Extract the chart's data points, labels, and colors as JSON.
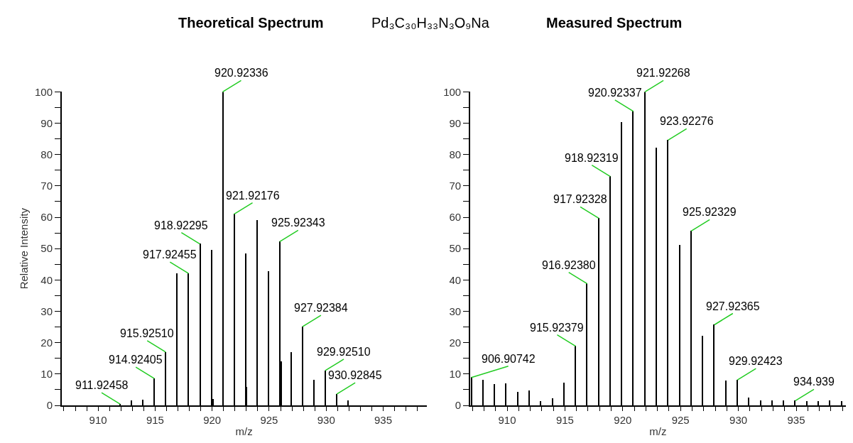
{
  "chart_data": [
    {
      "type": "bar",
      "title": "Theoretical Spectrum",
      "xlabel": "m/z",
      "ylabel": "Relative Intensity",
      "annotations": [
        "Pd₃C₃₀H₃₃N₃O₉Na",
        {
          "text": "911.92458",
          "x": 911.92458,
          "y": 0.4
        },
        {
          "text": "914.92405",
          "x": 914.92405,
          "y": 8.6
        },
        {
          "text": "915.92510",
          "x": 915.9251,
          "y": 17
        },
        {
          "text": "917.92455",
          "x": 917.92455,
          "y": 42.1
        },
        {
          "text": "918.92295",
          "x": 918.92295,
          "y": 51.5
        },
        {
          "text": "920.92336",
          "x": 920.92336,
          "y": 100
        },
        {
          "text": "921.92176",
          "x": 921.92176,
          "y": 61
        },
        {
          "text": "925.92343",
          "x": 925.92343,
          "y": 52.2
        },
        {
          "text": "927.92384",
          "x": 927.92384,
          "y": 25.1
        },
        {
          "text": "929.92510",
          "x": 929.9251,
          "y": 11.1
        },
        {
          "text": "930.92845",
          "x": 930.92845,
          "y": 3.6
        }
      ],
      "x": [
        911.92,
        912.92,
        913.92,
        914.92,
        915.92,
        916.92,
        917.92,
        918.92,
        919.92,
        920.04,
        920.92,
        921.92,
        922.92,
        922.98,
        923.92,
        924.92,
        925.92,
        926.04,
        926.92,
        927.92,
        928.92,
        929.92,
        930.92,
        931.92
      ],
      "series": [
        {
          "color": "#000000",
          "values": [
            0.4,
            1.6,
            1.7,
            8.6,
            17,
            42.1,
            42.1,
            51.5,
            49.6,
            1.9,
            100,
            61,
            48.3,
            5.8,
            59,
            42.7,
            52.2,
            13.9,
            17,
            25.1,
            8.1,
            11.1,
            3.6,
            1.6
          ]
        }
      ],
      "xlim": [
        906.8,
        938.8
      ],
      "ylim": [
        0,
        100
      ],
      "xticks": [
        {
          "value": 907,
          "label": null
        },
        {
          "value": 908,
          "label": null
        },
        {
          "value": 909,
          "label": null
        },
        910,
        {
          "value": 911,
          "label": null
        },
        {
          "value": 912,
          "label": null
        },
        {
          "value": 913,
          "label": null
        },
        {
          "value": 914,
          "label": null
        },
        915,
        {
          "value": 916,
          "label": null
        },
        {
          "value": 917,
          "label": null
        },
        {
          "value": 918,
          "label": null
        },
        {
          "value": 919,
          "label": null
        },
        920,
        {
          "value": 921,
          "label": null
        },
        {
          "value": 922,
          "label": null
        },
        {
          "value": 923,
          "label": null
        },
        {
          "value": 924,
          "label": null
        },
        925,
        {
          "value": 926,
          "label": null
        },
        {
          "value": 927,
          "label": null
        },
        {
          "value": 928,
          "label": null
        },
        {
          "value": 929,
          "label": null
        },
        930,
        {
          "value": 931,
          "label": null
        },
        {
          "value": 932,
          "label": null
        },
        {
          "value": 933,
          "label": null
        },
        {
          "value": 934,
          "label": null
        },
        935,
        {
          "value": 936,
          "label": null
        },
        {
          "value": 937,
          "label": null
        },
        {
          "value": 938,
          "label": null
        }
      ],
      "yticks": [
        0,
        {
          "value": 5,
          "label": null
        },
        10,
        {
          "value": 15,
          "label": null
        },
        20,
        {
          "value": 25,
          "label": null
        },
        30,
        {
          "value": 35,
          "label": null
        },
        40,
        {
          "value": 45,
          "label": null
        },
        50,
        {
          "value": 55,
          "label": null
        },
        60,
        {
          "value": 65,
          "label": null
        },
        70,
        {
          "value": 75,
          "label": null
        },
        80,
        {
          "value": 85,
          "label": null
        },
        90,
        {
          "value": 95,
          "label": null
        },
        100
      ]
    },
    {
      "type": "bar",
      "title": "Measured Spectrum",
      "xlabel": "m/z",
      "annotations": [
        {
          "text": "906.90742",
          "x": 906.90742,
          "y": 8.9
        },
        {
          "text": "915.92379",
          "x": 915.92379,
          "y": 18.9
        },
        {
          "text": "916.92380",
          "x": 916.9238,
          "y": 38.8
        },
        {
          "text": "917.92328",
          "x": 917.92328,
          "y": 59.7
        },
        {
          "text": "918.92319",
          "x": 918.92319,
          "y": 73
        },
        {
          "text": "920.92337",
          "x": 920.92337,
          "y": 93.8
        },
        {
          "text": "921.92268",
          "x": 921.92268,
          "y": 100
        },
        {
          "text": "923.92276",
          "x": 923.92276,
          "y": 84.6
        },
        {
          "text": "925.92329",
          "x": 925.92329,
          "y": 55.6
        },
        {
          "text": "927.92365",
          "x": 927.92365,
          "y": 25.7
        },
        {
          "text": "929.92423",
          "x": 929.92423,
          "y": 8.1
        },
        {
          "text": "934.939",
          "x": 934.939,
          "y": 1.5
        }
      ],
      "x": [
        906.9,
        907.9,
        908.9,
        909.9,
        910.9,
        911.9,
        912.9,
        913.9,
        914.9,
        915.9,
        916.9,
        917.9,
        918.9,
        919.9,
        920.9,
        921.9,
        922.9,
        923.9,
        924.9,
        925.9,
        926.9,
        927.9,
        928.9,
        929.9,
        930.9,
        931.9,
        932.9,
        933.9,
        934.9,
        935.9,
        936.9,
        937.9,
        938.9
      ],
      "series": [
        {
          "color": "#000000",
          "values": [
            8.9,
            8.1,
            6.6,
            6.9,
            4.2,
            4.6,
            1.2,
            2.2,
            7.2,
            18.9,
            38.8,
            59.7,
            73,
            90.2,
            93.8,
            100,
            82.2,
            84.6,
            51.1,
            55.6,
            22,
            25.7,
            7.9,
            8.1,
            2.5,
            1.5,
            1.4,
            1.5,
            1.5,
            1.3,
            1.3,
            1.4,
            1.3
          ]
        }
      ],
      "xlim": [
        906.8,
        939.3
      ],
      "ylim": [
        0,
        100
      ],
      "xticks": [
        {
          "value": 907,
          "label": null
        },
        {
          "value": 908,
          "label": null
        },
        {
          "value": 909,
          "label": null
        },
        910,
        {
          "value": 911,
          "label": null
        },
        {
          "value": 912,
          "label": null
        },
        {
          "value": 913,
          "label": null
        },
        {
          "value": 914,
          "label": null
        },
        915,
        {
          "value": 916,
          "label": null
        },
        {
          "value": 917,
          "label": null
        },
        {
          "value": 918,
          "label": null
        },
        {
          "value": 919,
          "label": null
        },
        920,
        {
          "value": 921,
          "label": null
        },
        {
          "value": 922,
          "label": null
        },
        {
          "value": 923,
          "label": null
        },
        {
          "value": 924,
          "label": null
        },
        925,
        {
          "value": 926,
          "label": null
        },
        {
          "value": 927,
          "label": null
        },
        {
          "value": 928,
          "label": null
        },
        {
          "value": 929,
          "label": null
        },
        930,
        {
          "value": 931,
          "label": null
        },
        {
          "value": 932,
          "label": null
        },
        {
          "value": 933,
          "label": null
        },
        {
          "value": 934,
          "label": null
        },
        935,
        {
          "value": 936,
          "label": null
        },
        {
          "value": 937,
          "label": null
        },
        {
          "value": 938,
          "label": null
        },
        {
          "value": 939,
          "label": null
        }
      ],
      "yticks": [
        0,
        {
          "value": 5,
          "label": null
        },
        10,
        {
          "value": 15,
          "label": null
        },
        20,
        {
          "value": 25,
          "label": null
        },
        30,
        {
          "value": 35,
          "label": null
        },
        40,
        {
          "value": 45,
          "label": null
        },
        50,
        {
          "value": 55,
          "label": null
        },
        60,
        {
          "value": 65,
          "label": null
        },
        70,
        {
          "value": 75,
          "label": null
        },
        80,
        {
          "value": 85,
          "label": null
        },
        90,
        {
          "value": 95,
          "label": null
        },
        100
      ]
    }
  ]
}
